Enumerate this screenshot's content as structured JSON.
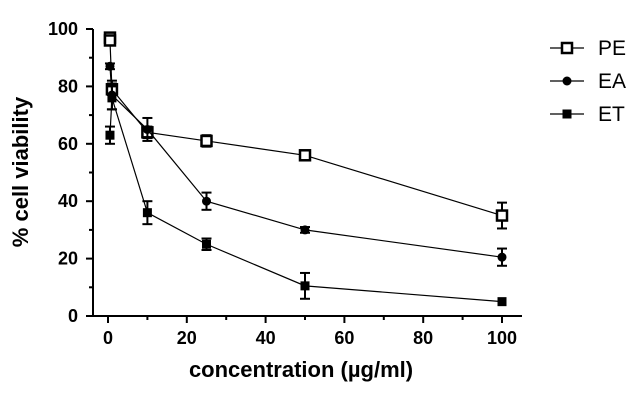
{
  "chart_data": {
    "type": "line",
    "title": "",
    "xlabel": "concentration (µg/ml)",
    "ylabel": "% cell viability",
    "xlim": [
      0,
      105
    ],
    "ylim": [
      0,
      100
    ],
    "xticks": [
      0,
      20,
      40,
      60,
      80,
      100
    ],
    "yticks": [
      0,
      20,
      40,
      60,
      80,
      100
    ],
    "grid": false,
    "legend_position": "top-right",
    "series": [
      {
        "name": "PE",
        "marker": "open-square",
        "x": [
          0.5,
          0.5,
          1,
          10,
          25,
          50,
          100
        ],
        "y": [
          97,
          96,
          79,
          64,
          61,
          56,
          35
        ],
        "err": [
          1.5,
          1.5,
          2,
          2,
          2,
          1.5,
          4.5
        ]
      },
      {
        "name": "EA",
        "marker": "circle",
        "x": [
          0.5,
          1,
          10,
          25,
          50,
          100
        ],
        "y": [
          87,
          77,
          65,
          40,
          30,
          20.5
        ],
        "err": [
          1,
          5,
          4,
          3,
          1,
          3
        ]
      },
      {
        "name": "ET",
        "marker": "filled-square",
        "x": [
          0.5,
          1,
          10,
          25,
          50,
          100
        ],
        "y": [
          63,
          76,
          36,
          25,
          10.5,
          5
        ],
        "err": [
          3,
          4,
          4,
          2,
          4.5,
          0.5
        ]
      }
    ]
  }
}
